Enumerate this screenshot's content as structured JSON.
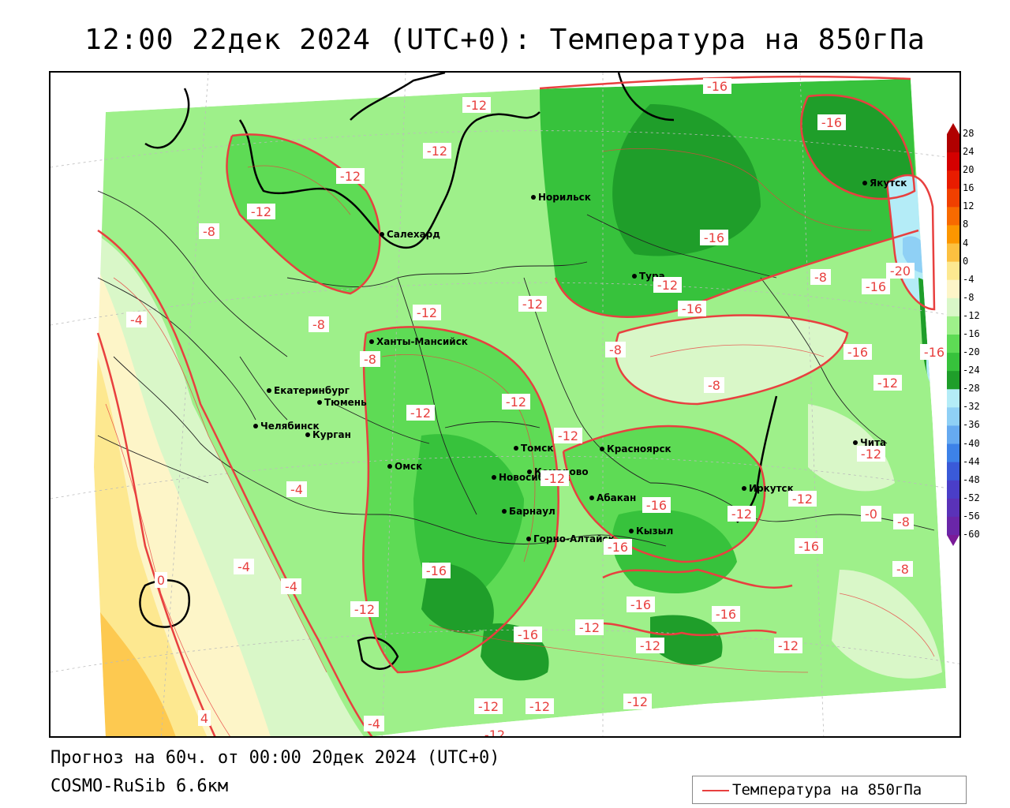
{
  "title": "12:00 22дек 2024 (UTC+0): Температура на 850гПа",
  "forecast_line": "Прогноз на 60ч. от 00:00 20дек 2024 (UTC+0)",
  "model_line": "COSMO-RuSib 6.6км",
  "legend": {
    "label": "Температура на 850гПа",
    "line_color": "#e8403f"
  },
  "colorbar": {
    "ticks": [
      "28",
      "24",
      "20",
      "16",
      "12",
      "8",
      "4",
      "0",
      "-4",
      "-8",
      "-12",
      "-16",
      "-20",
      "-24",
      "-28",
      "-32",
      "-36",
      "-40",
      "-44",
      "-48",
      "-52",
      "-56",
      "-60"
    ],
    "colors": [
      "#b00000",
      "#d40000",
      "#e81c00",
      "#f04000",
      "#f86a00",
      "#fc9600",
      "#fcc040",
      "#fde890",
      "#fdf5c8",
      "#d9f7c8",
      "#9ef08a",
      "#5edb55",
      "#37c23c",
      "#1f9e2a",
      "#b4ecf7",
      "#8fd0f5",
      "#66aaf0",
      "#3d82e8",
      "#3a5ad8",
      "#4a3ec8",
      "#5a32b8",
      "#6a26a8",
      "#7a1a98"
    ]
  },
  "cities": [
    {
      "name": "Якутск"
    },
    {
      "name": "Норильск"
    },
    {
      "name": "Салехард"
    },
    {
      "name": "Тура"
    },
    {
      "name": "Ханты-Мансийск"
    },
    {
      "name": "Екатеринбург"
    },
    {
      "name": "Тюмень"
    },
    {
      "name": "Челябинск"
    },
    {
      "name": "Курган"
    },
    {
      "name": "Омск"
    },
    {
      "name": "Новосибирск"
    },
    {
      "name": "Томск"
    },
    {
      "name": "Кемерово"
    },
    {
      "name": "Красноярск"
    },
    {
      "name": "Барнаул"
    },
    {
      "name": "Абакан"
    },
    {
      "name": "Горно-Алтайск"
    },
    {
      "name": "Кызыл"
    },
    {
      "name": "Иркутск"
    },
    {
      "name": "Чита"
    }
  ],
  "contour_labels": [
    "-16",
    "-12",
    "-16",
    "-12",
    "-12",
    "-12",
    "-8",
    "-16",
    "-8",
    "-12",
    "-20",
    "-16",
    "-12",
    "-4",
    "-12",
    "-8",
    "-16",
    "-16",
    "-8",
    "-16",
    "-8",
    "-12",
    "-12",
    "-12",
    "-8",
    "-12",
    "-4",
    "-12",
    "-16",
    "-12",
    "-12",
    "-8",
    "-16",
    "-16",
    "-12",
    "-4",
    "-16",
    "-0",
    "-4",
    "-16",
    "-12",
    "-12",
    "-16",
    "-12",
    "-16",
    "-12",
    "-12",
    "-8",
    "0",
    "4",
    "-12",
    "-12",
    "-12",
    "-4"
  ]
}
